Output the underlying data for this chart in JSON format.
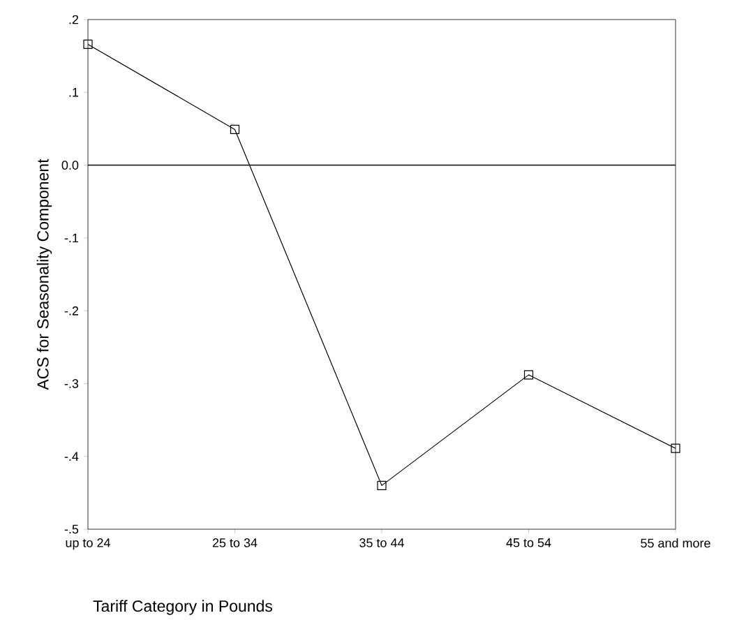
{
  "chart_data": {
    "type": "line",
    "xlabel": "Tariff Category in Pounds",
    "ylabel": "ACS for Seasonality Component",
    "categories": [
      "up to 24",
      "25 to 34",
      "35 to 44",
      "45 to 54",
      "55 and more"
    ],
    "series": [
      {
        "color": "#000000",
        "values": [
          0.166,
          0.049,
          -0.44,
          -0.288,
          -0.389
        ]
      }
    ],
    "ylim": [
      -0.5,
      0.2
    ],
    "yticks": [
      {
        "value": -0.5,
        "label": "-.5"
      },
      {
        "value": -0.4,
        "label": "-.4"
      },
      {
        "value": -0.3,
        "label": "-.3"
      },
      {
        "value": -0.2,
        "label": "-.2"
      },
      {
        "value": -0.1,
        "label": "-.1"
      },
      {
        "value": 0,
        "label": "0.0"
      },
      {
        "value": 0.1,
        "label": ".1"
      },
      {
        "value": 0.2,
        "label": ".2"
      }
    ],
    "ref_lines": [
      {
        "axis": "y",
        "value": 0
      }
    ],
    "marker": "square",
    "line_style": "solid",
    "grid": false
  }
}
